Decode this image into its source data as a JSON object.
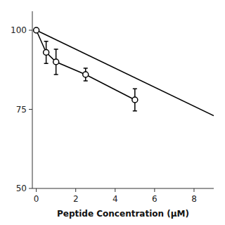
{
  "chart_data": {
    "type": "line",
    "xlabel": "Peptide Concentration (μM)",
    "series": [
      {
        "x": [
          0,
          9.0
        ],
        "values": [
          100.0,
          73.0
        ],
        "color": "black",
        "marker": "none",
        "line_style": "solid"
      },
      {
        "x": [
          0,
          0.5,
          1,
          2.5,
          5
        ],
        "values": [
          100,
          93,
          90,
          86,
          78
        ],
        "errors": [
          0,
          3.5,
          4,
          2.0,
          3.5
        ],
        "color": "black",
        "marker": "circle",
        "line_style": "solid"
      }
    ],
    "xlim": [
      -0.2,
      9.0
    ],
    "ylim": [
      50,
      106
    ],
    "xticks": [
      0,
      2,
      4,
      6,
      8
    ],
    "yticks": [
      50,
      75,
      100
    ],
    "grid": false
  }
}
